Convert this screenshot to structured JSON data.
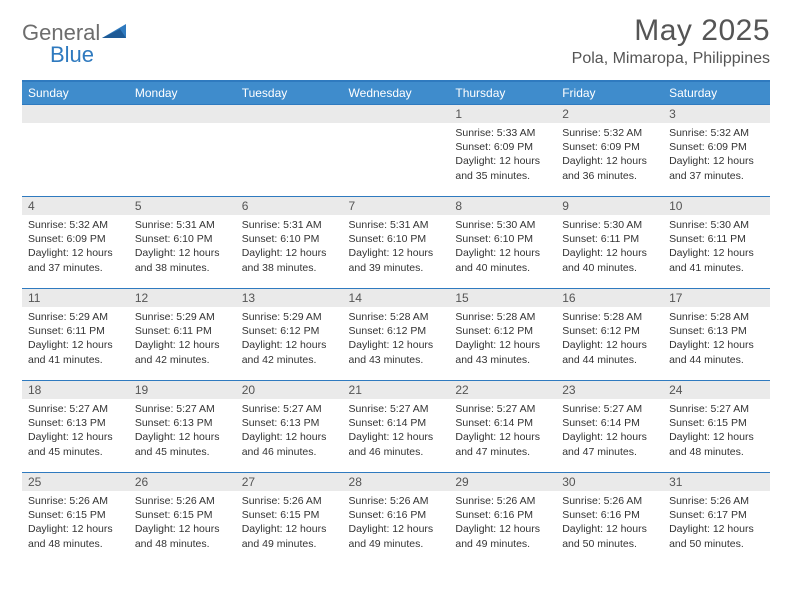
{
  "logo": {
    "part1": "General",
    "part2": "Blue"
  },
  "header": {
    "month": "May 2025",
    "location": "Pola, Mimaropa, Philippines"
  },
  "dayNames": [
    "Sunday",
    "Monday",
    "Tuesday",
    "Wednesday",
    "Thursday",
    "Friday",
    "Saturday"
  ],
  "colors": {
    "accent": "#3f8ccc",
    "border": "#2f7abf",
    "dayHeader": "#eaeaea",
    "text": "#555"
  },
  "firstDayOffset": 4,
  "days": [
    {
      "n": 1,
      "sr": "5:33 AM",
      "ss": "6:09 PM",
      "dl": "12 hours and 35 minutes."
    },
    {
      "n": 2,
      "sr": "5:32 AM",
      "ss": "6:09 PM",
      "dl": "12 hours and 36 minutes."
    },
    {
      "n": 3,
      "sr": "5:32 AM",
      "ss": "6:09 PM",
      "dl": "12 hours and 37 minutes."
    },
    {
      "n": 4,
      "sr": "5:32 AM",
      "ss": "6:09 PM",
      "dl": "12 hours and 37 minutes."
    },
    {
      "n": 5,
      "sr": "5:31 AM",
      "ss": "6:10 PM",
      "dl": "12 hours and 38 minutes."
    },
    {
      "n": 6,
      "sr": "5:31 AM",
      "ss": "6:10 PM",
      "dl": "12 hours and 38 minutes."
    },
    {
      "n": 7,
      "sr": "5:31 AM",
      "ss": "6:10 PM",
      "dl": "12 hours and 39 minutes."
    },
    {
      "n": 8,
      "sr": "5:30 AM",
      "ss": "6:10 PM",
      "dl": "12 hours and 40 minutes."
    },
    {
      "n": 9,
      "sr": "5:30 AM",
      "ss": "6:11 PM",
      "dl": "12 hours and 40 minutes."
    },
    {
      "n": 10,
      "sr": "5:30 AM",
      "ss": "6:11 PM",
      "dl": "12 hours and 41 minutes."
    },
    {
      "n": 11,
      "sr": "5:29 AM",
      "ss": "6:11 PM",
      "dl": "12 hours and 41 minutes."
    },
    {
      "n": 12,
      "sr": "5:29 AM",
      "ss": "6:11 PM",
      "dl": "12 hours and 42 minutes."
    },
    {
      "n": 13,
      "sr": "5:29 AM",
      "ss": "6:12 PM",
      "dl": "12 hours and 42 minutes."
    },
    {
      "n": 14,
      "sr": "5:28 AM",
      "ss": "6:12 PM",
      "dl": "12 hours and 43 minutes."
    },
    {
      "n": 15,
      "sr": "5:28 AM",
      "ss": "6:12 PM",
      "dl": "12 hours and 43 minutes."
    },
    {
      "n": 16,
      "sr": "5:28 AM",
      "ss": "6:12 PM",
      "dl": "12 hours and 44 minutes."
    },
    {
      "n": 17,
      "sr": "5:28 AM",
      "ss": "6:13 PM",
      "dl": "12 hours and 44 minutes."
    },
    {
      "n": 18,
      "sr": "5:27 AM",
      "ss": "6:13 PM",
      "dl": "12 hours and 45 minutes."
    },
    {
      "n": 19,
      "sr": "5:27 AM",
      "ss": "6:13 PM",
      "dl": "12 hours and 45 minutes."
    },
    {
      "n": 20,
      "sr": "5:27 AM",
      "ss": "6:13 PM",
      "dl": "12 hours and 46 minutes."
    },
    {
      "n": 21,
      "sr": "5:27 AM",
      "ss": "6:14 PM",
      "dl": "12 hours and 46 minutes."
    },
    {
      "n": 22,
      "sr": "5:27 AM",
      "ss": "6:14 PM",
      "dl": "12 hours and 47 minutes."
    },
    {
      "n": 23,
      "sr": "5:27 AM",
      "ss": "6:14 PM",
      "dl": "12 hours and 47 minutes."
    },
    {
      "n": 24,
      "sr": "5:27 AM",
      "ss": "6:15 PM",
      "dl": "12 hours and 48 minutes."
    },
    {
      "n": 25,
      "sr": "5:26 AM",
      "ss": "6:15 PM",
      "dl": "12 hours and 48 minutes."
    },
    {
      "n": 26,
      "sr": "5:26 AM",
      "ss": "6:15 PM",
      "dl": "12 hours and 48 minutes."
    },
    {
      "n": 27,
      "sr": "5:26 AM",
      "ss": "6:15 PM",
      "dl": "12 hours and 49 minutes."
    },
    {
      "n": 28,
      "sr": "5:26 AM",
      "ss": "6:16 PM",
      "dl": "12 hours and 49 minutes."
    },
    {
      "n": 29,
      "sr": "5:26 AM",
      "ss": "6:16 PM",
      "dl": "12 hours and 49 minutes."
    },
    {
      "n": 30,
      "sr": "5:26 AM",
      "ss": "6:16 PM",
      "dl": "12 hours and 50 minutes."
    },
    {
      "n": 31,
      "sr": "5:26 AM",
      "ss": "6:17 PM",
      "dl": "12 hours and 50 minutes."
    }
  ],
  "labels": {
    "sunrise": "Sunrise:",
    "sunset": "Sunset:",
    "daylight": "Daylight:"
  }
}
